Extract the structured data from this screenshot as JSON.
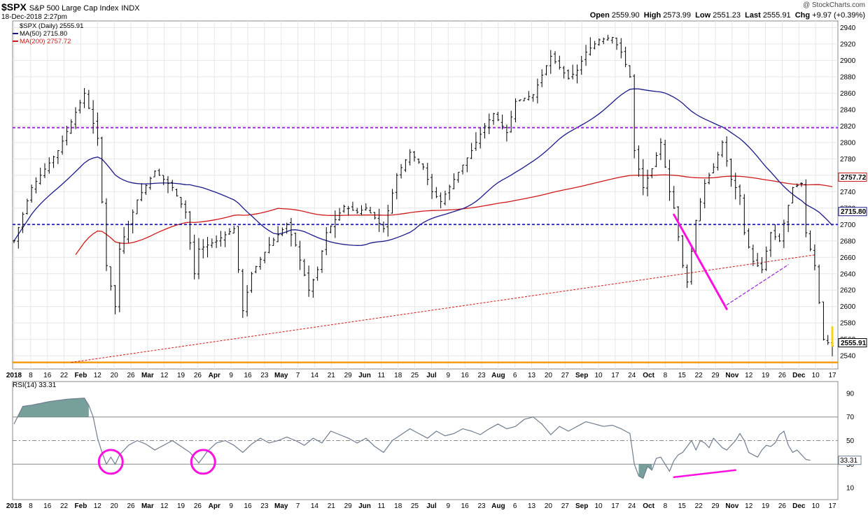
{
  "header": {
    "symbol": "$SPX",
    "name": "S&P 500 Large Cap Index",
    "exchange": "INDX",
    "date": "18-Dec-2018 2:27pm",
    "brand": "@ StockCharts.com",
    "open_label": "Open",
    "open": "2559.90",
    "high_label": "High",
    "high": "2573.99",
    "low_label": "Low",
    "low": "2551.23",
    "last_label": "Last",
    "last": "2555.91",
    "chg_label": "Chg",
    "chg": "+9.97 (+0.39%)"
  },
  "legend": {
    "price": "$SPX (Daily) 2555.91",
    "ma50": "MA(50) 2715.80",
    "ma200": "MA(200) 2757.72",
    "rsi": "RSI(14) 33.31"
  },
  "colors": {
    "price": "#000000",
    "ma50": "#1a1a8c",
    "ma200": "#d01818",
    "purple": "#9a22d8",
    "blue_line": "#1a1ab0",
    "orange": "#f39c12",
    "magenta": "#ff10e0",
    "rsi_line": "#6f7d90",
    "rsi_fill": "#5f8f88",
    "grid": "#e6e6e6"
  },
  "chart_data": [
    {
      "type": "ohlc",
      "series": [
        {
          "name": "$SPX (Daily)",
          "last": 2555.91
        },
        {
          "name": "MA(50)",
          "last": 2715.8
        },
        {
          "name": "MA(200)",
          "last": 2757.72
        }
      ],
      "ylim": [
        2524,
        2948
      ],
      "y_ticks": [
        2540,
        2560,
        2580,
        2600,
        2620,
        2640,
        2660,
        2680,
        2700,
        2720,
        2740,
        2760,
        2780,
        2800,
        2820,
        2840,
        2860,
        2880,
        2900,
        2920,
        2940
      ],
      "x_tick_labels": [
        "2018",
        "8",
        "16",
        "22",
        "Feb",
        "12",
        "20",
        "26",
        "Mar",
        "12",
        "19",
        "26",
        "Apr",
        "9",
        "16",
        "23",
        "May",
        "7",
        "14",
        "21",
        "29",
        "Jun",
        "11",
        "18",
        "25",
        "Jul",
        "9",
        "16",
        "23",
        "Aug",
        "6",
        "13",
        "20",
        "27",
        "Sep",
        "10",
        "17",
        "24",
        "Oct",
        "8",
        "15",
        "22",
        "29",
        "Nov",
        "12",
        "19",
        "26",
        "Dec",
        "10",
        "17"
      ],
      "price_anchors": [
        [
          0,
          2680
        ],
        [
          4,
          2745
        ],
        [
          10,
          2790
        ],
        [
          16,
          2860
        ],
        [
          19,
          2805
        ],
        [
          21,
          2650
        ],
        [
          23,
          2600
        ],
        [
          24,
          2670
        ],
        [
          28,
          2730
        ],
        [
          32,
          2765
        ],
        [
          36,
          2745
        ],
        [
          39,
          2715
        ],
        [
          41,
          2640
        ],
        [
          42,
          2670
        ],
        [
          46,
          2680
        ],
        [
          50,
          2695
        ],
        [
          52,
          2595
        ],
        [
          54,
          2640
        ],
        [
          58,
          2675
        ],
        [
          62,
          2700
        ],
        [
          64,
          2675
        ],
        [
          67,
          2620
        ],
        [
          69,
          2645
        ],
        [
          71,
          2690
        ],
        [
          75,
          2722
        ],
        [
          78,
          2715
        ],
        [
          80,
          2720
        ],
        [
          82,
          2708
        ],
        [
          84,
          2695
        ],
        [
          87,
          2760
        ],
        [
          90,
          2788
        ],
        [
          93,
          2770
        ],
        [
          95,
          2740
        ],
        [
          97,
          2728
        ],
        [
          100,
          2755
        ],
        [
          104,
          2790
        ],
        [
          107,
          2820
        ],
        [
          109,
          2835
        ],
        [
          112,
          2812
        ],
        [
          114,
          2850
        ],
        [
          118,
          2858
        ],
        [
          120,
          2882
        ],
        [
          122,
          2905
        ],
        [
          126,
          2878
        ],
        [
          128,
          2888
        ],
        [
          130,
          2910
        ],
        [
          133,
          2925
        ],
        [
          136,
          2928
        ],
        [
          138,
          2910
        ],
        [
          140,
          2880
        ],
        [
          141,
          2790
        ],
        [
          143,
          2745
        ],
        [
          145,
          2768
        ],
        [
          147,
          2800
        ],
        [
          149,
          2740
        ],
        [
          150,
          2720
        ],
        [
          152,
          2650
        ],
        [
          153,
          2630
        ],
        [
          155,
          2705
        ],
        [
          157,
          2750
        ],
        [
          159,
          2770
        ],
        [
          161,
          2800
        ],
        [
          163,
          2755
        ],
        [
          165,
          2735
        ],
        [
          166,
          2690
        ],
        [
          168,
          2655
        ],
        [
          170,
          2645
        ],
        [
          172,
          2690
        ],
        [
          174,
          2680
        ],
        [
          177,
          2745
        ],
        [
          179,
          2750
        ],
        [
          180,
          2690
        ],
        [
          182,
          2650
        ],
        [
          184,
          2560
        ],
        [
          186,
          2552
        ]
      ],
      "ma50_last": 2715.8,
      "ma200_last": 2757.72,
      "horizontal_lines": [
        {
          "value": 2818,
          "color": "purple",
          "style": "dashed"
        },
        {
          "value": 2700,
          "color": "blue",
          "style": "dashed"
        },
        {
          "value": 2532,
          "color": "orange",
          "style": "solid"
        }
      ],
      "trend_lines": [
        {
          "from": [
            13,
            2532
          ],
          "to": [
            182,
            2663
          ],
          "color": "red",
          "style": "dashed"
        }
      ],
      "annotations": [
        {
          "type": "divergence_price",
          "from": [
            150,
            2712
          ],
          "to": [
            162,
            2597
          ],
          "color": "magenta"
        },
        {
          "type": "divergence_link",
          "from": [
            162,
            2602
          ],
          "to": [
            176,
            2651
          ],
          "color": "purple",
          "style": "dashed"
        }
      ]
    },
    {
      "type": "line",
      "series": [
        {
          "name": "RSI(14)",
          "last": 33.31
        }
      ],
      "ylim": [
        0,
        100
      ],
      "y_ticks": [
        10,
        30,
        50,
        70,
        90
      ],
      "reference_lines": [
        30,
        50,
        70
      ],
      "x_tick_labels": [
        "2018",
        "8",
        "16",
        "22",
        "Feb",
        "12",
        "20",
        "26",
        "Mar",
        "12",
        "19",
        "26",
        "Apr",
        "9",
        "16",
        "23",
        "May",
        "7",
        "14",
        "21",
        "29",
        "Jun",
        "11",
        "18",
        "25",
        "Jul",
        "9",
        "16",
        "23",
        "Aug",
        "6",
        "13",
        "20",
        "27",
        "Sep",
        "10",
        "17",
        "24",
        "Oct",
        "8",
        "15",
        "22",
        "29",
        "Nov",
        "12",
        "19",
        "26",
        "Dec",
        "10",
        "17"
      ],
      "rsi_anchors": [
        [
          0,
          64
        ],
        [
          2,
          79
        ],
        [
          4,
          80
        ],
        [
          8,
          83
        ],
        [
          12,
          85
        ],
        [
          16,
          86
        ],
        [
          17,
          80
        ],
        [
          18,
          70
        ],
        [
          19,
          52
        ],
        [
          20,
          40
        ],
        [
          21,
          30
        ],
        [
          22,
          36
        ],
        [
          23,
          30
        ],
        [
          24,
          38
        ],
        [
          26,
          46
        ],
        [
          28,
          50
        ],
        [
          30,
          47
        ],
        [
          32,
          42
        ],
        [
          34,
          46
        ],
        [
          36,
          50
        ],
        [
          38,
          45
        ],
        [
          40,
          40
        ],
        [
          42,
          31
        ],
        [
          43,
          36
        ],
        [
          44,
          41
        ],
        [
          46,
          48
        ],
        [
          48,
          50
        ],
        [
          50,
          46
        ],
        [
          52,
          40
        ],
        [
          54,
          47
        ],
        [
          56,
          52
        ],
        [
          58,
          48
        ],
        [
          60,
          50
        ],
        [
          62,
          53
        ],
        [
          64,
          50
        ],
        [
          66,
          46
        ],
        [
          68,
          52
        ],
        [
          70,
          48
        ],
        [
          72,
          58
        ],
        [
          74,
          55
        ],
        [
          76,
          52
        ],
        [
          78,
          48
        ],
        [
          80,
          52
        ],
        [
          82,
          45
        ],
        [
          84,
          40
        ],
        [
          86,
          50
        ],
        [
          88,
          55
        ],
        [
          90,
          60
        ],
        [
          92,
          56
        ],
        [
          94,
          52
        ],
        [
          96,
          58
        ],
        [
          98,
          54
        ],
        [
          100,
          56
        ],
        [
          102,
          60
        ],
        [
          104,
          58
        ],
        [
          106,
          55
        ],
        [
          108,
          60
        ],
        [
          110,
          64
        ],
        [
          112,
          60
        ],
        [
          114,
          62
        ],
        [
          116,
          68
        ],
        [
          118,
          70
        ],
        [
          120,
          64
        ],
        [
          122,
          55
        ],
        [
          124,
          62
        ],
        [
          126,
          58
        ],
        [
          128,
          62
        ],
        [
          130,
          66
        ],
        [
          132,
          64
        ],
        [
          134,
          62
        ],
        [
          136,
          63
        ],
        [
          138,
          60
        ],
        [
          140,
          56
        ],
        [
          141,
          30
        ],
        [
          142,
          20
        ],
        [
          143,
          18
        ],
        [
          144,
          28
        ],
        [
          145,
          25
        ],
        [
          146,
          35
        ],
        [
          147,
          36
        ],
        [
          148,
          30
        ],
        [
          149,
          24
        ],
        [
          150,
          33
        ],
        [
          151,
          38
        ],
        [
          152,
          40
        ],
        [
          153,
          45
        ],
        [
          154,
          50
        ],
        [
          155,
          42
        ],
        [
          156,
          50
        ],
        [
          157,
          48
        ],
        [
          158,
          44
        ],
        [
          159,
          52
        ],
        [
          160,
          48
        ],
        [
          161,
          44
        ],
        [
          162,
          42
        ],
        [
          163,
          46
        ],
        [
          164,
          50
        ],
        [
          165,
          56
        ],
        [
          166,
          50
        ],
        [
          167,
          40
        ],
        [
          168,
          38
        ],
        [
          169,
          36
        ],
        [
          170,
          42
        ],
        [
          171,
          46
        ],
        [
          172,
          45
        ],
        [
          173,
          48
        ],
        [
          174,
          55
        ],
        [
          175,
          58
        ],
        [
          176,
          46
        ],
        [
          177,
          40
        ],
        [
          178,
          42
        ],
        [
          179,
          38
        ],
        [
          180,
          34
        ],
        [
          181,
          33.31
        ]
      ],
      "highlights": [
        {
          "type": "circle",
          "at": [
            22,
            32
          ],
          "color": "magenta"
        },
        {
          "type": "circle",
          "at": [
            43,
            32
          ],
          "color": "magenta"
        },
        {
          "type": "divergence_rsi",
          "from": [
            150,
            19
          ],
          "to": [
            164,
            25
          ],
          "color": "magenta"
        }
      ]
    }
  ]
}
